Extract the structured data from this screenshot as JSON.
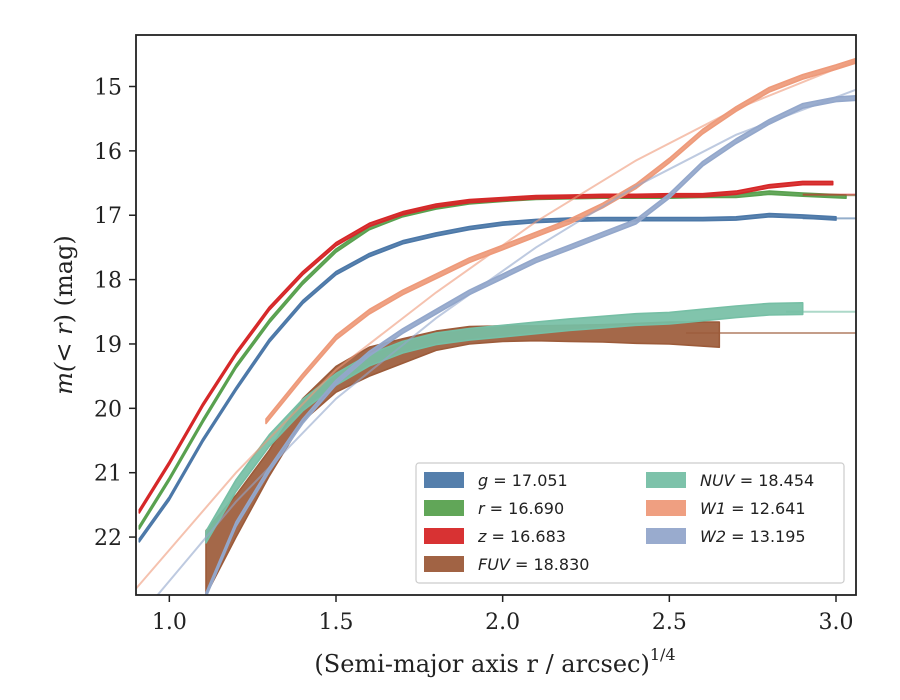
{
  "chart_data": {
    "type": "line",
    "xlabel": "(Semi-major axis r / arcsec)",
    "xlabel_sup": "1/4",
    "ylabel_prefix": "m(",
    "ylabel_mid": "< r",
    "ylabel_suffix": ") (mag)",
    "xlim": [
      0.9,
      3.06
    ],
    "ylim": [
      22.9,
      14.2
    ],
    "y_inverted": true,
    "xticks": [
      1.0,
      1.5,
      2.0,
      2.5,
      3.0
    ],
    "xtick_labels": [
      "1.0",
      "1.5",
      "2.0",
      "2.5",
      "3.0"
    ],
    "yticks": [
      15,
      16,
      17,
      18,
      19,
      20,
      21,
      22
    ],
    "ytick_labels": [
      "15",
      "16",
      "17",
      "18",
      "19",
      "20",
      "21",
      "22"
    ],
    "grid": false,
    "legend_position": "lower-right",
    "series": [
      {
        "name": "g = 17.051",
        "color": "#4C78A8",
        "band_width": 0.05,
        "data": [
          [
            0.91,
            22.05
          ],
          [
            1.0,
            21.4
          ],
          [
            1.1,
            20.5
          ],
          [
            1.2,
            19.7
          ],
          [
            1.3,
            18.95
          ],
          [
            1.4,
            18.35
          ],
          [
            1.5,
            17.9
          ],
          [
            1.6,
            17.62
          ],
          [
            1.7,
            17.42
          ],
          [
            1.8,
            17.3
          ],
          [
            1.9,
            17.2
          ],
          [
            2.0,
            17.13
          ],
          [
            2.1,
            17.09
          ],
          [
            2.2,
            17.07
          ],
          [
            2.3,
            17.06
          ],
          [
            2.4,
            17.06
          ],
          [
            2.5,
            17.06
          ],
          [
            2.6,
            17.06
          ],
          [
            2.7,
            17.05
          ],
          [
            2.8,
            17.0
          ],
          [
            2.9,
            17.02
          ],
          [
            3.0,
            17.05
          ]
        ],
        "model": [
          [
            2.9,
            17.05
          ],
          [
            3.06,
            17.05
          ]
        ]
      },
      {
        "name": "r = 16.690",
        "color": "#59A14F",
        "band_width": 0.05,
        "data": [
          [
            0.91,
            21.85
          ],
          [
            1.0,
            21.1
          ],
          [
            1.1,
            20.2
          ],
          [
            1.2,
            19.35
          ],
          [
            1.3,
            18.65
          ],
          [
            1.4,
            18.05
          ],
          [
            1.5,
            17.55
          ],
          [
            1.6,
            17.2
          ],
          [
            1.7,
            17.0
          ],
          [
            1.8,
            16.88
          ],
          [
            1.9,
            16.8
          ],
          [
            2.0,
            16.76
          ],
          [
            2.1,
            16.73
          ],
          [
            2.2,
            16.72
          ],
          [
            2.3,
            16.71
          ],
          [
            2.4,
            16.71
          ],
          [
            2.5,
            16.71
          ],
          [
            2.6,
            16.7
          ],
          [
            2.7,
            16.7
          ],
          [
            2.8,
            16.65
          ],
          [
            2.9,
            16.68
          ],
          [
            3.03,
            16.71
          ]
        ],
        "model": [
          [
            2.9,
            16.69
          ],
          [
            3.06,
            16.69
          ]
        ]
      },
      {
        "name": "z = 16.683",
        "color": "#D62728",
        "band_width": 0.05,
        "data": [
          [
            0.91,
            21.6
          ],
          [
            1.0,
            20.85
          ],
          [
            1.1,
            19.95
          ],
          [
            1.2,
            19.15
          ],
          [
            1.3,
            18.45
          ],
          [
            1.4,
            17.9
          ],
          [
            1.5,
            17.45
          ],
          [
            1.6,
            17.15
          ],
          [
            1.7,
            16.97
          ],
          [
            1.8,
            16.85
          ],
          [
            1.9,
            16.78
          ],
          [
            2.0,
            16.75
          ],
          [
            2.1,
            16.72
          ],
          [
            2.2,
            16.71
          ],
          [
            2.3,
            16.7
          ],
          [
            2.4,
            16.7
          ],
          [
            2.5,
            16.69
          ],
          [
            2.6,
            16.69
          ],
          [
            2.7,
            16.65
          ],
          [
            2.8,
            16.55
          ],
          [
            2.9,
            16.5
          ],
          [
            2.99,
            16.5
          ]
        ],
        "model": [
          [
            2.9,
            16.68
          ],
          [
            3.06,
            16.68
          ]
        ]
      },
      {
        "name": "FUV = 18.830",
        "color": "#9C5B3A",
        "band_width": null,
        "upper": [
          [
            1.11,
            21.9
          ],
          [
            1.2,
            21.35
          ],
          [
            1.3,
            20.65
          ],
          [
            1.4,
            19.85
          ],
          [
            1.5,
            19.35
          ],
          [
            1.6,
            19.05
          ],
          [
            1.7,
            18.92
          ],
          [
            1.8,
            18.8
          ],
          [
            1.9,
            18.73
          ],
          [
            2.0,
            18.72
          ],
          [
            2.1,
            18.72
          ],
          [
            2.2,
            18.71
          ],
          [
            2.3,
            18.7
          ],
          [
            2.4,
            18.68
          ],
          [
            2.5,
            18.66
          ],
          [
            2.65,
            18.66
          ]
        ],
        "lower": [
          [
            1.11,
            22.9
          ],
          [
            1.2,
            22.0
          ],
          [
            1.3,
            21.05
          ],
          [
            1.4,
            20.2
          ],
          [
            1.5,
            19.75
          ],
          [
            1.6,
            19.5
          ],
          [
            1.7,
            19.3
          ],
          [
            1.8,
            19.1
          ],
          [
            1.9,
            19.0
          ],
          [
            2.0,
            18.96
          ],
          [
            2.1,
            18.95
          ],
          [
            2.2,
            18.96
          ],
          [
            2.3,
            18.97
          ],
          [
            2.4,
            18.99
          ],
          [
            2.5,
            19.0
          ],
          [
            2.65,
            19.05
          ]
        ],
        "model": [
          [
            2.55,
            18.83
          ],
          [
            3.06,
            18.83
          ]
        ]
      },
      {
        "name": "NUV = 18.454",
        "color": "#76BFA5",
        "band_width": 0.18,
        "data": [
          [
            1.11,
            22.0
          ],
          [
            1.2,
            21.2
          ],
          [
            1.3,
            20.5
          ],
          [
            1.4,
            19.95
          ],
          [
            1.5,
            19.55
          ],
          [
            1.6,
            19.25
          ],
          [
            1.7,
            19.05
          ],
          [
            1.8,
            18.92
          ],
          [
            1.9,
            18.85
          ],
          [
            2.0,
            18.8
          ],
          [
            2.1,
            18.75
          ],
          [
            2.2,
            18.7
          ],
          [
            2.3,
            18.66
          ],
          [
            2.4,
            18.62
          ],
          [
            2.5,
            18.6
          ],
          [
            2.6,
            18.55
          ],
          [
            2.7,
            18.5
          ],
          [
            2.8,
            18.46
          ],
          [
            2.9,
            18.45
          ]
        ],
        "model": [
          [
            2.85,
            18.5
          ],
          [
            3.06,
            18.5
          ]
        ]
      },
      {
        "name": "W1 = 12.641",
        "color": "#EE9A7A",
        "band_width": 0.07,
        "data": [
          [
            1.29,
            20.2
          ],
          [
            1.4,
            19.5
          ],
          [
            1.5,
            18.9
          ],
          [
            1.6,
            18.5
          ],
          [
            1.7,
            18.2
          ],
          [
            1.8,
            17.95
          ],
          [
            1.9,
            17.7
          ],
          [
            2.0,
            17.5
          ],
          [
            2.1,
            17.3
          ],
          [
            2.2,
            17.1
          ],
          [
            2.3,
            16.85
          ],
          [
            2.4,
            16.55
          ],
          [
            2.5,
            16.15
          ],
          [
            2.6,
            15.7
          ],
          [
            2.7,
            15.35
          ],
          [
            2.8,
            15.05
          ],
          [
            2.9,
            14.85
          ],
          [
            3.0,
            14.7
          ],
          [
            3.06,
            14.6
          ]
        ],
        "model": [
          [
            0.9,
            22.8
          ],
          [
            1.2,
            21.0
          ],
          [
            1.5,
            19.4
          ],
          [
            1.8,
            18.2
          ],
          [
            2.1,
            17.1
          ],
          [
            2.4,
            16.15
          ],
          [
            2.7,
            15.35
          ],
          [
            3.06,
            14.6
          ]
        ]
      },
      {
        "name": "W2 = 13.195",
        "color": "#93A7CB",
        "band_width": 0.07,
        "data": [
          [
            1.11,
            22.9
          ],
          [
            1.2,
            21.8
          ],
          [
            1.3,
            20.95
          ],
          [
            1.4,
            20.2
          ],
          [
            1.5,
            19.6
          ],
          [
            1.6,
            19.15
          ],
          [
            1.7,
            18.8
          ],
          [
            1.8,
            18.5
          ],
          [
            1.9,
            18.2
          ],
          [
            2.0,
            17.95
          ],
          [
            2.1,
            17.7
          ],
          [
            2.2,
            17.5
          ],
          [
            2.3,
            17.3
          ],
          [
            2.4,
            17.1
          ],
          [
            2.5,
            16.7
          ],
          [
            2.6,
            16.2
          ],
          [
            2.7,
            15.85
          ],
          [
            2.8,
            15.55
          ],
          [
            2.9,
            15.3
          ],
          [
            3.0,
            15.2
          ],
          [
            3.06,
            15.18
          ]
        ],
        "model": [
          [
            0.9,
            23.3
          ],
          [
            1.2,
            21.45
          ],
          [
            1.5,
            19.85
          ],
          [
            1.8,
            18.6
          ],
          [
            2.1,
            17.5
          ],
          [
            2.4,
            16.55
          ],
          [
            2.7,
            15.75
          ],
          [
            3.06,
            15.05
          ]
        ]
      }
    ]
  }
}
